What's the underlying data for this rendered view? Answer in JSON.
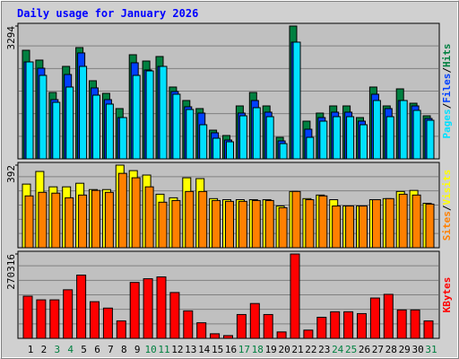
{
  "chart_data": [
    {
      "type": "bar",
      "title": "Daily usage for January 2026",
      "legend_separator": "/",
      "ylim": [
        0,
        3294
      ],
      "yticks": [
        3294
      ],
      "series": [
        {
          "name": "Hits",
          "color": "#008040",
          "values": [
            2693,
            2449,
            1647,
            2293,
            2760,
            1937,
            1625,
            1247,
            2582,
            2426,
            2538,
            1781,
            1447,
            1247,
            712,
            579,
            1313,
            1647,
            1313,
            534,
            3294,
            935,
            1135,
            1313,
            1313,
            1024,
            1781,
            1313,
            1736,
            1380,
            1068
          ]
        },
        {
          "name": "Files",
          "color": "#0040ff",
          "values": [
            2404,
            2248,
            1469,
            2092,
            2627,
            1759,
            1469,
            1024,
            2382,
            2204,
            2293,
            1670,
            1291,
            1135,
            646,
            467,
            1135,
            1447,
            1158,
            445,
            2894,
            735,
            1024,
            1158,
            1158,
            935,
            1603,
            1247,
            1447,
            1313,
            1002
          ]
        },
        {
          "name": "Pages",
          "color": "#00e0ff",
          "values": [
            2404,
            2070,
            1402,
            1781,
            2293,
            1580,
            1358,
            1024,
            2070,
            2181,
            2293,
            1603,
            1224,
            846,
            512,
            423,
            1068,
            1269,
            1046,
            378,
            2894,
            534,
            935,
            1046,
            1046,
            846,
            1447,
            1046,
            1447,
            1202,
            957
          ]
        }
      ]
    },
    {
      "type": "bar",
      "ylim": [
        0,
        392
      ],
      "yticks": [
        392
      ],
      "series": [
        {
          "name": "Visits",
          "color": "#ffff00",
          "values": [
            302,
            362,
            289,
            289,
            306,
            276,
            276,
            392,
            366,
            345,
            254,
            237,
            332,
            328,
            233,
            228,
            228,
            228,
            228,
            198,
            267,
            233,
            250,
            228,
            198,
            198,
            228,
            233,
            267,
            272,
            211
          ]
        },
        {
          "name": "Sites",
          "color": "#ff8000",
          "values": [
            246,
            263,
            259,
            237,
            250,
            272,
            263,
            353,
            332,
            289,
            216,
            224,
            267,
            267,
            224,
            220,
            220,
            224,
            224,
            190,
            267,
            228,
            246,
            198,
            198,
            198,
            228,
            233,
            254,
            250,
            207
          ]
        }
      ]
    },
    {
      "type": "bar",
      "ylim": [
        0,
        270316
      ],
      "yticks": [
        270316
      ],
      "categories": [
        "1",
        "2",
        "3",
        "4",
        "5",
        "6",
        "7",
        "8",
        "9",
        "10",
        "11",
        "12",
        "13",
        "14",
        "15",
        "16",
        "17",
        "18",
        "19",
        "20",
        "21",
        "22",
        "23",
        "24",
        "25",
        "26",
        "27",
        "28",
        "29",
        "30",
        "31"
      ],
      "category_colors": [
        "#000",
        "#000",
        "#008040",
        "#008040",
        "#000",
        "#000",
        "#000",
        "#000",
        "#000",
        "#008040",
        "#008040",
        "#000",
        "#000",
        "#000",
        "#000",
        "#000",
        "#008040",
        "#008040",
        "#000",
        "#000",
        "#000",
        "#000",
        "#000",
        "#008040",
        "#008040",
        "#000",
        "#000",
        "#000",
        "#000",
        "#000",
        "#008040"
      ],
      "series": [
        {
          "name": "KBytes",
          "color": "#ff0000",
          "values": [
            135148,
            123396,
            123396,
            155714,
            202722,
            117520,
            96954,
            55822,
            179218,
            190970,
            196846,
            146900,
            88140,
            49946,
            14690,
            8814,
            76388,
            111644,
            76388,
            20566,
            270316,
            26442,
            67574,
            85202,
            85202,
            79326,
            129272,
            141024,
            91078,
            91078,
            55822
          ]
        }
      ]
    }
  ]
}
